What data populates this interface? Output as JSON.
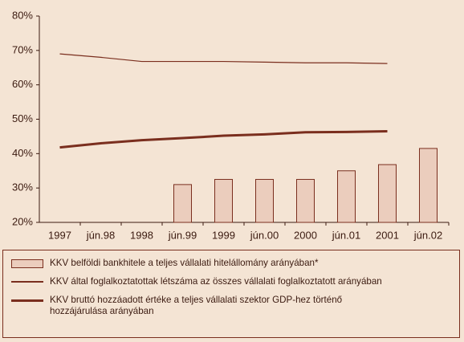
{
  "chart_data": {
    "type": "bar-line",
    "categories": [
      "1997",
      "jún.98",
      "1998",
      "jún.99",
      "1999",
      "jún.00",
      "2000",
      "jún.01",
      "2001",
      "jún.02"
    ],
    "series": [
      {
        "name": "KKV belföldi bankhitele a teljes vállalati hitelállomány arányában*",
        "type": "bar",
        "color": "#ebcdbd",
        "values": [
          null,
          null,
          null,
          31,
          32.5,
          32.5,
          32.5,
          35,
          36.8,
          41.5
        ]
      },
      {
        "name": "KKV által foglalkoztatottak létszáma az összes vállalati foglalkoztatott arányában",
        "type": "line",
        "color": "#7a2e1e",
        "width": 1.2,
        "values": [
          69,
          68,
          66.8,
          66.8,
          66.8,
          66.6,
          66.4,
          66.4,
          66.2,
          null
        ]
      },
      {
        "name": "KKV bruttó hozzáadott értéke a teljes vállalati szektor GDP-hez történő hozzájárulása arányában",
        "type": "line",
        "color": "#7a2e1e",
        "width": 3,
        "values": [
          41.8,
          43,
          43.9,
          44.5,
          45.2,
          45.6,
          46.2,
          46.3,
          46.5,
          null
        ]
      }
    ],
    "ylim": [
      20,
      80
    ],
    "yticks": [
      {
        "value": 20,
        "label": "20%"
      },
      {
        "value": 30,
        "label": "30%"
      },
      {
        "value": 40,
        "label": "40%"
      },
      {
        "value": 50,
        "label": "50%"
      },
      {
        "value": 60,
        "label": "60%"
      },
      {
        "value": 70,
        "label": "70%"
      },
      {
        "value": 80,
        "label": "80%"
      }
    ],
    "grid": false,
    "legend": "bottom"
  }
}
